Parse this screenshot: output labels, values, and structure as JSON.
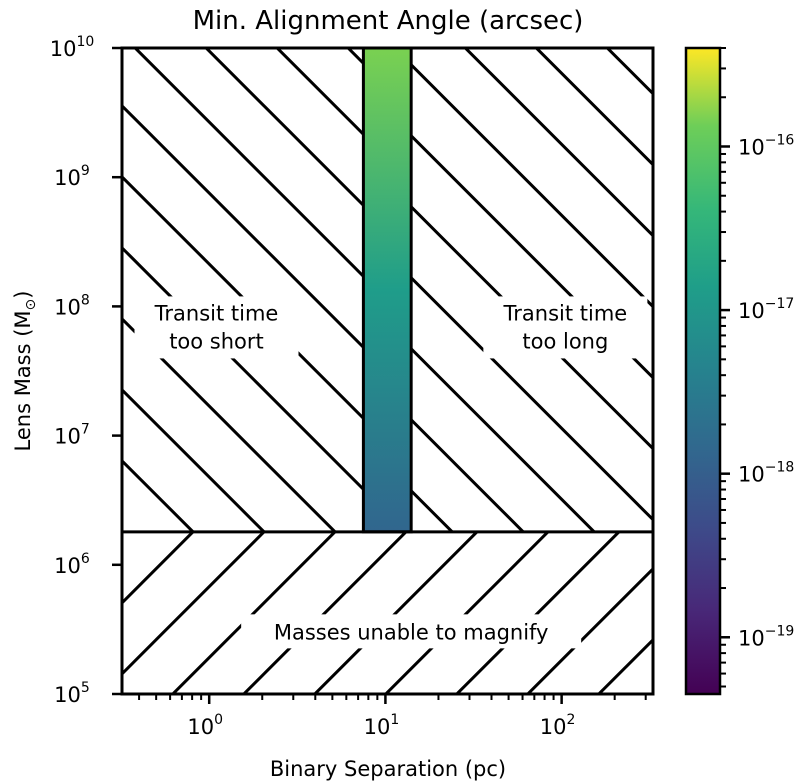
{
  "chart_data": {
    "type": "heatmap",
    "title": "Min. Alignment Angle (arcsec)",
    "xlabel": "Binary Separation (pc)",
    "ylabel_main": "Lens Mass (M",
    "ylabel_sub": "⊙",
    "ylabel_end": ")",
    "x_scale": "log",
    "y_scale": "log",
    "xlim": [
      0.32,
      330
    ],
    "ylim": [
      100000,
      10000000000
    ],
    "x_ticks": [
      {
        "value": 1,
        "base": "10",
        "exp": "0"
      },
      {
        "value": 10,
        "base": "10",
        "exp": "1"
      },
      {
        "value": 100,
        "base": "10",
        "exp": "2"
      }
    ],
    "y_ticks": [
      {
        "value": 100000,
        "base": "10",
        "exp": "5"
      },
      {
        "value": 1000000,
        "base": "10",
        "exp": "6"
      },
      {
        "value": 10000000,
        "base": "10",
        "exp": "7"
      },
      {
        "value": 100000000,
        "base": "10",
        "exp": "8"
      },
      {
        "value": 1000000000,
        "base": "10",
        "exp": "9"
      },
      {
        "value": 10000000000,
        "base": "10",
        "exp": "10"
      }
    ],
    "allowed_band": {
      "x_range": [
        7.5,
        14
      ],
      "y_range": [
        1800000,
        10000000000
      ],
      "angle_at_bottom": 1.6e-18,
      "angle_at_top": 2.3e-16
    },
    "regions": [
      {
        "label_line1": "Transit time",
        "label_line2": "too short",
        "hatch": "backslash",
        "x_range": [
          0.32,
          7.5
        ],
        "y_range": [
          1800000,
          10000000000
        ],
        "label_at": [
          1.1,
          70000000
        ]
      },
      {
        "label_line1": "Transit time",
        "label_line2": "too long",
        "hatch": "backslash",
        "x_range": [
          14,
          330
        ],
        "y_range": [
          1800000,
          10000000000
        ],
        "label_at": [
          105,
          70000000
        ]
      },
      {
        "label_line1": "Masses unable to magnify",
        "label_line2": "",
        "hatch": "slash",
        "x_range": [
          0.32,
          330
        ],
        "y_range": [
          100000,
          1800000
        ],
        "label_at": [
          14,
          300000
        ]
      }
    ],
    "colorbar": {
      "colormap": "viridis",
      "scale": "log",
      "range": [
        4.5e-20,
        4e-16
      ],
      "ticks": [
        {
          "value": 1e-19,
          "base": "10",
          "exp": "−19"
        },
        {
          "value": 1e-18,
          "base": "10",
          "exp": "−18"
        },
        {
          "value": 1e-17,
          "base": "10",
          "exp": "−17"
        },
        {
          "value": 1e-16,
          "base": "10",
          "exp": "−16"
        }
      ]
    }
  }
}
